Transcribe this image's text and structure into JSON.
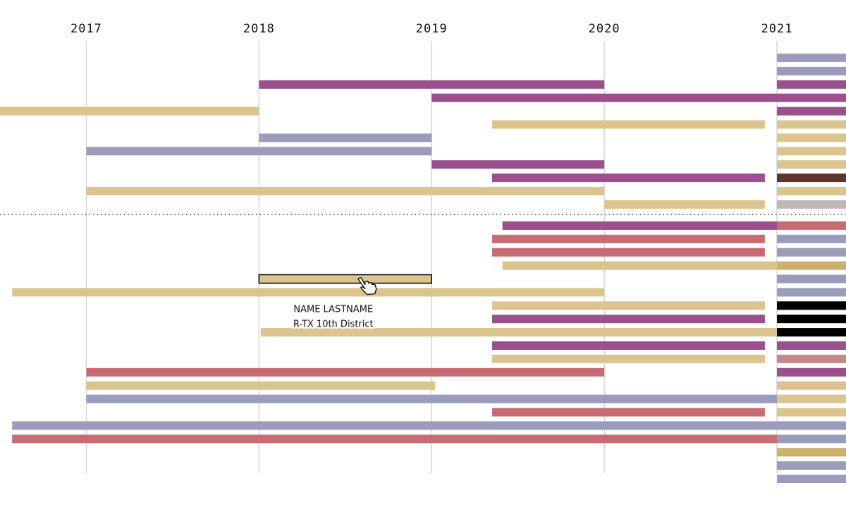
{
  "chart_data": {
    "type": "timeline",
    "xlim": [
      2016.5,
      2021.4
    ],
    "xticks": [
      2017,
      2018,
      2019,
      2020,
      2021
    ],
    "grid": true,
    "groups": [
      {
        "rows": [
          [
            {
              "start": 2021,
              "end": 2021.4,
              "color": "#9b9bbb"
            }
          ],
          [
            {
              "start": 2021,
              "end": 2021.4,
              "color": "#9b9bbb"
            }
          ],
          [
            {
              "start": 2018,
              "end": 2020,
              "color": "#9b4f8d"
            },
            {
              "start": 2021,
              "end": 2021.4,
              "color": "#9b4f8d"
            }
          ],
          [
            {
              "start": 2019,
              "end": 2021,
              "color": "#9b4f8d"
            },
            {
              "start": 2021,
              "end": 2021.4,
              "color": "#9b4f8d"
            }
          ],
          [
            {
              "start": 2016.5,
              "end": 2018,
              "color": "#dcc48e"
            },
            {
              "start": 2021,
              "end": 2021.4,
              "color": "#9b4f8d"
            }
          ],
          [
            {
              "start": 2019.35,
              "end": 2020.93,
              "color": "#dcc48e"
            },
            {
              "start": 2021,
              "end": 2021.4,
              "color": "#dcc48e"
            }
          ],
          [
            {
              "start": 2018,
              "end": 2019,
              "color": "#9b9bbb"
            },
            {
              "start": 2021,
              "end": 2021.4,
              "color": "#dcc48e"
            }
          ],
          [
            {
              "start": 2017,
              "end": 2019,
              "color": "#9b9bbb"
            },
            {
              "start": 2021,
              "end": 2021.4,
              "color": "#dcc48e"
            }
          ],
          [
            {
              "start": 2019,
              "end": 2020,
              "color": "#9b4f8d"
            },
            {
              "start": 2021,
              "end": 2021.4,
              "color": "#dcc48e"
            }
          ],
          [
            {
              "start": 2019.35,
              "end": 2020.93,
              "color": "#9b4f8d"
            },
            {
              "start": 2021,
              "end": 2021.4,
              "color": "#5a362d"
            }
          ],
          [
            {
              "start": 2017,
              "end": 2020,
              "color": "#dcc48e"
            },
            {
              "start": 2021,
              "end": 2021.4,
              "color": "#dcc48e"
            }
          ],
          [
            {
              "start": 2020,
              "end": 2020.93,
              "color": "#dcc48e"
            },
            {
              "start": 2021,
              "end": 2021.4,
              "color": "#c0b6b6"
            }
          ]
        ]
      },
      {
        "rows": [
          [
            {
              "start": 2019.41,
              "end": 2021,
              "color": "#9b4f8d"
            },
            {
              "start": 2021,
              "end": 2021.4,
              "color": "#c96b72"
            }
          ],
          [
            {
              "start": 2019.35,
              "end": 2020.93,
              "color": "#c96b72"
            },
            {
              "start": 2021,
              "end": 2021.4,
              "color": "#9b9bbb"
            }
          ],
          [
            {
              "start": 2019.35,
              "end": 2020.93,
              "color": "#c96b72"
            },
            {
              "start": 2021,
              "end": 2021.4,
              "color": "#9b9bbb"
            }
          ],
          [
            {
              "start": 2019.41,
              "end": 2021,
              "color": "#dcc48e"
            },
            {
              "start": 2021,
              "end": 2021.4,
              "color": "#cfb06a"
            }
          ],
          [
            {
              "start": 2018,
              "end": 2019,
              "color": "#dcc48e",
              "highlight": true
            },
            {
              "start": 2021,
              "end": 2021.4,
              "color": "#9b9bbb"
            }
          ],
          [
            {
              "start": 2016.57,
              "end": 2020,
              "color": "#dcc48e"
            },
            {
              "start": 2021,
              "end": 2021.4,
              "color": "#9b9bbb"
            }
          ],
          [
            {
              "start": 2019.35,
              "end": 2020.93,
              "color": "#dcc48e"
            },
            {
              "start": 2021,
              "end": 2021.4,
              "color": "#000000"
            }
          ],
          [
            {
              "start": 2019.35,
              "end": 2020.93,
              "color": "#9b4f8d"
            },
            {
              "start": 2021,
              "end": 2021.4,
              "color": "#000000"
            }
          ],
          [
            {
              "start": 2018.01,
              "end": 2021,
              "color": "#dcc48e"
            },
            {
              "start": 2021,
              "end": 2021.4,
              "color": "#000000"
            }
          ],
          [
            {
              "start": 2019.35,
              "end": 2020.93,
              "color": "#9b4f8d"
            },
            {
              "start": 2021,
              "end": 2021.4,
              "color": "#9b4f8d"
            }
          ],
          [
            {
              "start": 2019.35,
              "end": 2020.93,
              "color": "#dcc48e"
            },
            {
              "start": 2021,
              "end": 2021.4,
              "color": "#c48a8a"
            }
          ],
          [
            {
              "start": 2017,
              "end": 2020,
              "color": "#c96b72"
            },
            {
              "start": 2021,
              "end": 2021.4,
              "color": "#9b4f8d"
            }
          ],
          [
            {
              "start": 2017,
              "end": 2019.02,
              "color": "#dcc48e"
            },
            {
              "start": 2021,
              "end": 2021.4,
              "color": "#dcc48e"
            }
          ],
          [
            {
              "start": 2017,
              "end": 2021,
              "color": "#9b9bbb"
            },
            {
              "start": 2021,
              "end": 2021.4,
              "color": "#dcc48e"
            }
          ],
          [
            {
              "start": 2019.35,
              "end": 2020.93,
              "color": "#c96b72"
            },
            {
              "start": 2021,
              "end": 2021.4,
              "color": "#dcc48e"
            }
          ],
          [
            {
              "start": 2016.57,
              "end": 2021,
              "color": "#9b9bbb"
            },
            {
              "start": 2021,
              "end": 2021.4,
              "color": "#9b9bbb"
            }
          ],
          [
            {
              "start": 2016.57,
              "end": 2021,
              "color": "#c96b72"
            },
            {
              "start": 2021,
              "end": 2021.4,
              "color": "#9b9bbb"
            }
          ],
          [
            {
              "start": 2021,
              "end": 2021.4,
              "color": "#cfb06a"
            }
          ],
          [
            {
              "start": 2021,
              "end": 2021.4,
              "color": "#9b9bbb"
            }
          ],
          [
            {
              "start": 2021,
              "end": 2021.4,
              "color": "#9b9bbb"
            }
          ]
        ]
      }
    ],
    "tooltip": {
      "name": "NAME LASTNAME",
      "district": "R-TX 10th District"
    }
  }
}
